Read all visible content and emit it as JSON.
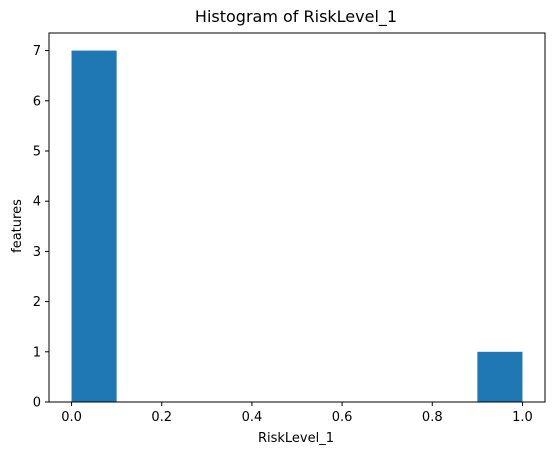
{
  "chart_data": {
    "type": "bar",
    "title": "Histogram of RiskLevel_1",
    "xlabel": "RiskLevel_1",
    "ylabel": "features",
    "xlim": [
      -0.05,
      1.05
    ],
    "ylim": [
      0,
      7.35
    ],
    "xticks": [
      0.0,
      0.2,
      0.4,
      0.6,
      0.8,
      1.0
    ],
    "xtick_labels": [
      "0.0",
      "0.2",
      "0.4",
      "0.6",
      "0.8",
      "1.0"
    ],
    "yticks": [
      0,
      1,
      2,
      3,
      4,
      5,
      6,
      7
    ],
    "ytick_labels": [
      "0",
      "1",
      "2",
      "3",
      "4",
      "5",
      "6",
      "7"
    ],
    "bins": [
      {
        "start": 0.0,
        "end": 0.1,
        "count": 7
      },
      {
        "start": 0.1,
        "end": 0.2,
        "count": 0
      },
      {
        "start": 0.2,
        "end": 0.3,
        "count": 0
      },
      {
        "start": 0.3,
        "end": 0.4,
        "count": 0
      },
      {
        "start": 0.4,
        "end": 0.5,
        "count": 0
      },
      {
        "start": 0.5,
        "end": 0.6,
        "count": 0
      },
      {
        "start": 0.6,
        "end": 0.7,
        "count": 0
      },
      {
        "start": 0.7,
        "end": 0.8,
        "count": 0
      },
      {
        "start": 0.8,
        "end": 0.9,
        "count": 0
      },
      {
        "start": 0.9,
        "end": 1.0,
        "count": 1
      }
    ],
    "bar_color": "#1f77b4",
    "grid": false,
    "legend": false
  }
}
